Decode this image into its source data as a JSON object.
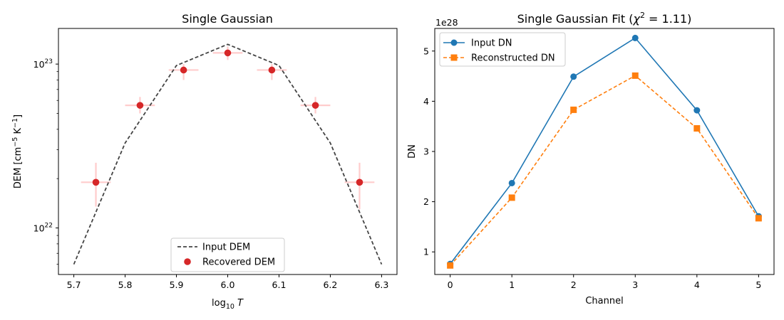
{
  "chart_data": [
    {
      "type": "scatter",
      "title": "Single Gaussian",
      "xlabel": "log₁₀ T",
      "ylabel": "DEM [cm⁻⁵ K⁻¹]",
      "yscale": "log",
      "xlim": [
        5.67,
        6.33
      ],
      "ylim": [
        5.2e+21,
        1.65e+23
      ],
      "x_ticks": [
        "5.7",
        "5.8",
        "5.9",
        "6.0",
        "6.1",
        "6.2",
        "6.3"
      ],
      "x_tick_values": [
        5.7,
        5.8,
        5.9,
        6.0,
        6.1,
        6.2,
        6.3
      ],
      "y_ticks": [
        {
          "value": 1e+22,
          "base": "10",
          "exp": "22"
        },
        {
          "value": 1e+23,
          "base": "10",
          "exp": "23"
        }
      ],
      "legend_position": "lower center",
      "series": [
        {
          "name": "Input DEM",
          "style": "dashed-line",
          "color": "#444444",
          "x": [
            5.7,
            5.8,
            5.9,
            6.0,
            6.1,
            6.2,
            6.3
          ],
          "y": [
            6e+21,
            3.3e+22,
            9.8e+22,
            1.32e+23,
            9.8e+22,
            3.3e+22,
            6e+21
          ]
        },
        {
          "name": "Recovered DEM",
          "style": "points-with-errorbars",
          "color": "#d62728",
          "errorbar_color": "#ffcccc",
          "x": [
            5.743,
            5.829,
            5.914,
            6.0,
            6.086,
            6.171,
            6.257
          ],
          "y": [
            1.9e+22,
            5.6e+22,
            9.2e+22,
            1.17e+23,
            9.2e+22,
            5.6e+22,
            1.9e+22
          ],
          "xerr": [
            0.029,
            0.029,
            0.029,
            0.029,
            0.029,
            0.029,
            0.029
          ],
          "yerr_low": [
            1.35e+22,
            5e+22,
            8e+22,
            1.06e+23,
            8e+22,
            5e+22,
            1.3e+22
          ],
          "yerr_high": [
            2.5e+22,
            6.3e+22,
            1e+23,
            1.28e+23,
            1e+23,
            6.3e+22,
            2.5e+22
          ]
        }
      ]
    },
    {
      "type": "line",
      "title": "Single Gaussian Fit (χ² = 1.11)",
      "title_main": "Single Gaussian Fit (",
      "title_chi": "χ",
      "title_sup": "2",
      "title_rest": " = 1.11)",
      "xlabel": "Channel",
      "ylabel": "DN",
      "y_multiplier": "1e28",
      "xlim": [
        -0.25,
        5.25
      ],
      "ylim": [
        0.55,
        5.45
      ],
      "categories": [
        "0",
        "1",
        "2",
        "3",
        "4",
        "5"
      ],
      "x": [
        0,
        1,
        2,
        3,
        4,
        5
      ],
      "y_ticks": [
        "1",
        "2",
        "3",
        "4",
        "5"
      ],
      "y_tick_values": [
        1,
        2,
        3,
        4,
        5
      ],
      "legend_position": "upper left",
      "series": [
        {
          "name": "Input DN",
          "style": "solid-circle",
          "color": "#1f77b4",
          "values": [
            0.76,
            2.37,
            4.49,
            5.26,
            3.82,
            1.71
          ]
        },
        {
          "name": "Reconstructed DN",
          "style": "dashed-square",
          "color": "#ff7f0e",
          "values": [
            0.73,
            2.08,
            3.83,
            4.51,
            3.46,
            1.67
          ]
        }
      ]
    }
  ]
}
